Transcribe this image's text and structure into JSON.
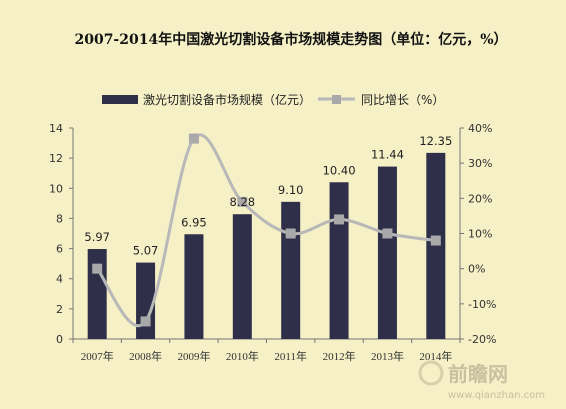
{
  "chart_data": {
    "type": "bar",
    "title": "2007-2014年中国激光切割设备市场规模走势图（单位：亿元，%）",
    "categories": [
      "2007年",
      "2008年",
      "2009年",
      "2010年",
      "2011年",
      "2012年",
      "2013年",
      "2014年"
    ],
    "series": [
      {
        "name": "激光切割设备市场规模（亿元）",
        "type": "bar",
        "axis": "left",
        "values": [
          5.97,
          5.07,
          6.95,
          8.28,
          9.1,
          10.4,
          11.44,
          12.35
        ],
        "labels": [
          "5.97",
          "5.07",
          "6.95",
          "8.28",
          "9.10",
          "10.40",
          "11.44",
          "12.35"
        ],
        "color": "#2f2f4a"
      },
      {
        "name": "同比增长（%）",
        "type": "line",
        "axis": "right",
        "values": [
          0,
          -15,
          37,
          19,
          10,
          14,
          10,
          8
        ],
        "color": "#b8b8b8"
      }
    ],
    "y_left": {
      "range": [
        0,
        14
      ],
      "ticks": [
        "0",
        "2",
        "4",
        "6",
        "8",
        "10",
        "12",
        "14"
      ]
    },
    "y_right": {
      "range": [
        -20,
        40
      ],
      "ticks": [
        "-20%",
        "-10%",
        "0%",
        "10%",
        "20%",
        "30%",
        "40%"
      ]
    },
    "legend_position": "top",
    "grid": false
  },
  "watermark": {
    "brand": "前瞻网",
    "url": "www.qianzhan.com"
  }
}
